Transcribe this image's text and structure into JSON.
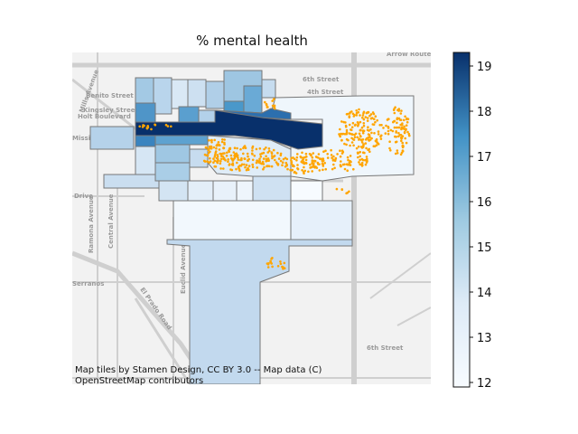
{
  "chart_data": {
    "type": "choropleth",
    "title": "% mental health",
    "colormap": "Blues",
    "colorbar": {
      "min": 11.9,
      "max": 19.3,
      "ticks": [
        12,
        13,
        14,
        15,
        16,
        17,
        18,
        19
      ]
    },
    "attribution": [
      "Map tiles by Stamen Design, CC BY 3.0 -- Map data (C)",
      "OpenStreetMap contributors"
    ],
    "tile_labels": [
      "6th Street",
      "4th Street",
      "Benito Street",
      "Kingsley Street",
      "Holt Boulevard",
      "Mission",
      "Drive",
      "Ramona Avenue",
      "Central Avenue",
      "Euclid Avenue",
      "El Prado Road",
      "Serranos",
      "6th Street",
      "Arrow Route",
      "Mills Avenue"
    ],
    "tracts_estimated_values": [
      19.3,
      17.2,
      16.0,
      15.5,
      15.0,
      14.3,
      13.9,
      13.5,
      13.0,
      12.6,
      12.2
    ],
    "points": "orange incident markers clustered in central and eastern tracts"
  }
}
